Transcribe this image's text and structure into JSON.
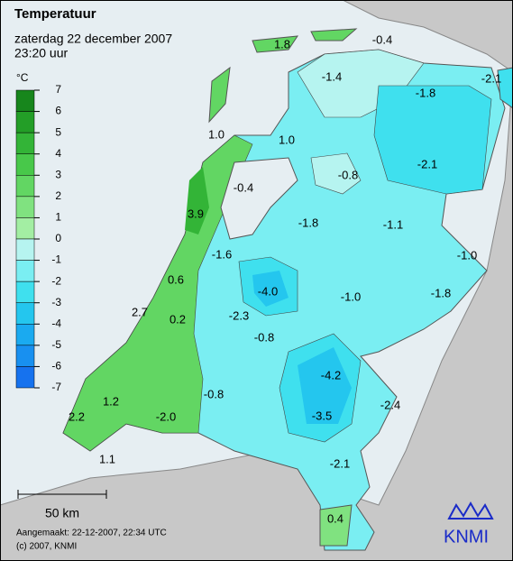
{
  "header": {
    "title": "Temperatuur",
    "date": "zaterdag 22 december 2007",
    "time": "23:20 uur"
  },
  "legend": {
    "unit": "°C",
    "ticks": [
      7,
      6,
      5,
      4,
      3,
      2,
      1,
      0,
      -1,
      -2,
      -3,
      -4,
      -5,
      -6,
      -7
    ],
    "colors": [
      "#17861c",
      "#239e27",
      "#33b437",
      "#48c84a",
      "#62d663",
      "#80e280",
      "#a3eea3",
      "#b6f4f0",
      "#7aeef2",
      "#3fe0ee",
      "#24c6ee",
      "#1aaaf0",
      "#1890f0",
      "#1672ee"
    ]
  },
  "stations": [
    {
      "label": "1.8"
    },
    {
      "label": "-0.4"
    },
    {
      "label": "-1.4"
    },
    {
      "label": "-2.1"
    },
    {
      "label": "-1.8"
    },
    {
      "label": "1.0"
    },
    {
      "label": "1.0"
    },
    {
      "label": "-2.1"
    },
    {
      "label": "-0.8"
    },
    {
      "label": "-0.4"
    },
    {
      "label": "3.9"
    },
    {
      "label": "-1.8"
    },
    {
      "label": "-1.1"
    },
    {
      "label": "-1.0"
    },
    {
      "label": "-1.6"
    },
    {
      "label": "0.6"
    },
    {
      "label": "-4.0"
    },
    {
      "label": "-1.0"
    },
    {
      "label": "-1.8"
    },
    {
      "label": "2.7"
    },
    {
      "label": "0.2"
    },
    {
      "label": "-2.3"
    },
    {
      "label": "-0.8"
    },
    {
      "label": "-4.2"
    },
    {
      "label": "-0.8"
    },
    {
      "label": "1.2"
    },
    {
      "label": "-2.4"
    },
    {
      "label": "2.2"
    },
    {
      "label": "-2.0"
    },
    {
      "label": "-3.5"
    },
    {
      "label": "1.1"
    },
    {
      "label": "-2.1"
    },
    {
      "label": "0.4"
    }
  ],
  "scale": {
    "label": "50 km"
  },
  "footer": {
    "created": "Aangemaakt: 22-12-2007, 22:34 UTC",
    "copyright": "(c) 2007, KNMI"
  },
  "logo": "KNMI"
}
